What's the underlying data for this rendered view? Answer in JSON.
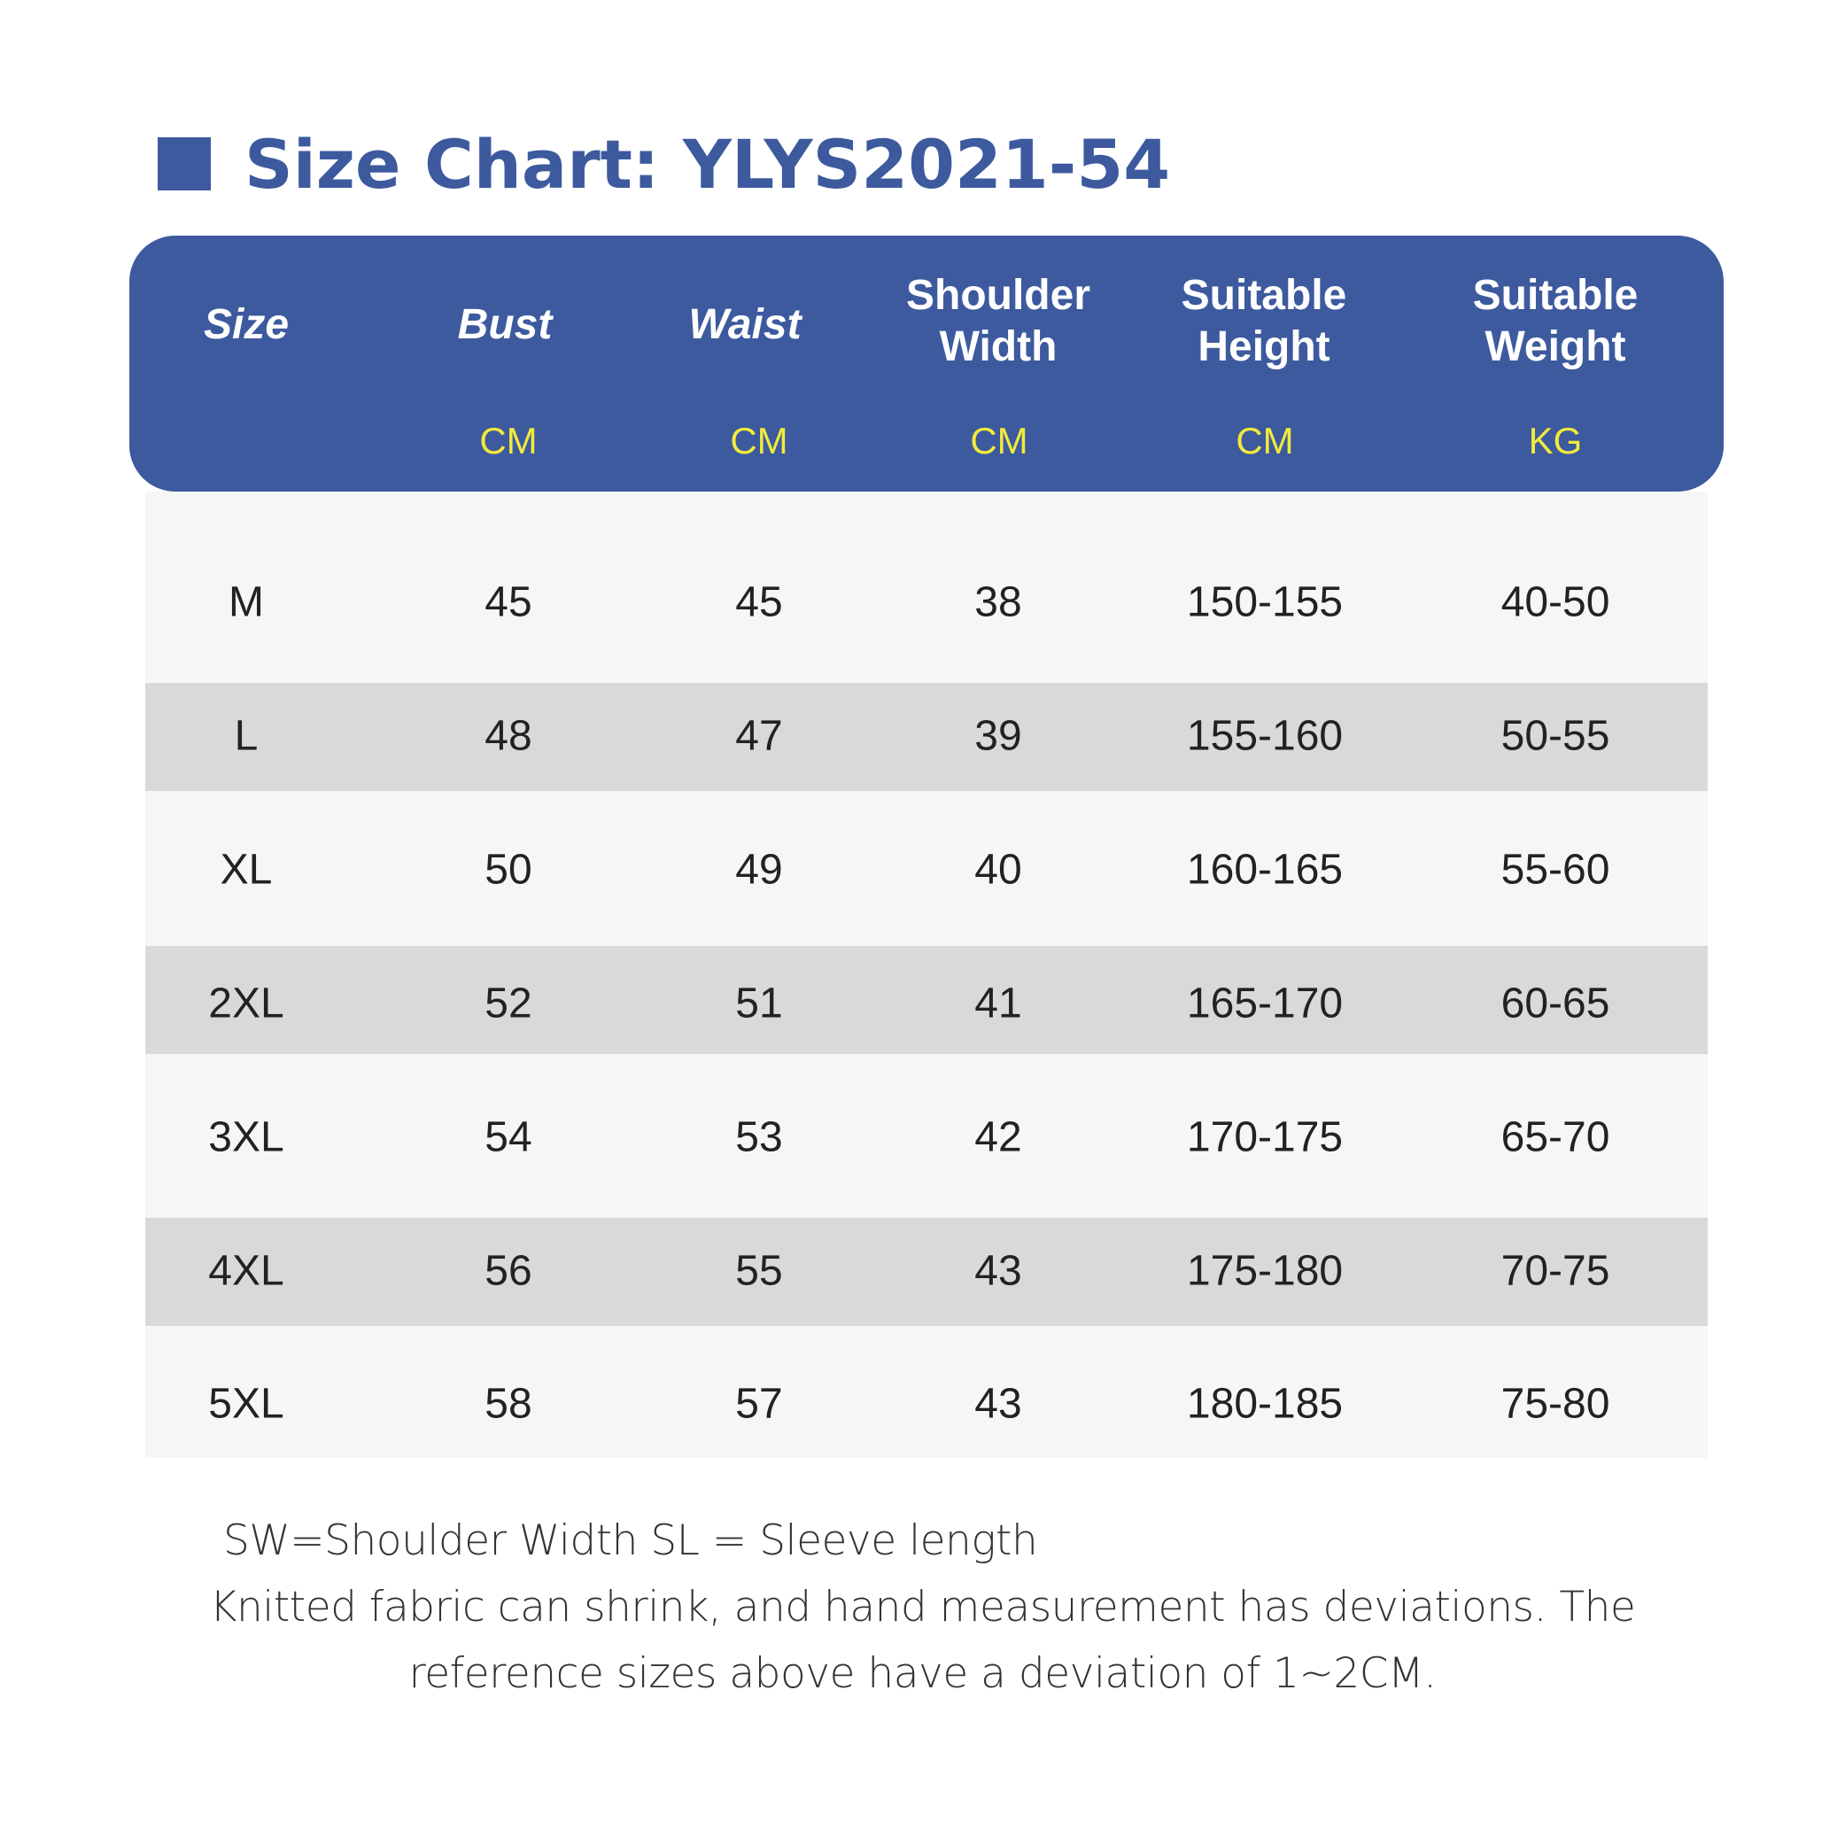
{
  "title": "Size Chart: YLYS2021-54",
  "colors": {
    "accent": "#3d5a9e",
    "unit": "#f1ea3b",
    "row_light": "#f6f6f6",
    "row_dark": "#d9d9d9"
  },
  "columns": [
    {
      "label": "Size",
      "unit": ""
    },
    {
      "label": "Bust",
      "unit": "CM"
    },
    {
      "label": "Waist",
      "unit": "CM"
    },
    {
      "label_line1": "Shoulder",
      "label_line2": "Width",
      "unit": "CM"
    },
    {
      "label_line1": "Suitable",
      "label_line2": "Height",
      "unit": "CM"
    },
    {
      "label_line1": "Suitable",
      "label_line2": "Weight",
      "unit": "KG"
    }
  ],
  "rows": [
    [
      "M",
      "45",
      "45",
      "38",
      "150-155",
      "40-50"
    ],
    [
      "L",
      "48",
      "47",
      "39",
      "155-160",
      "50-55"
    ],
    [
      "XL",
      "50",
      "49",
      "40",
      "160-165",
      "55-60"
    ],
    [
      "2XL",
      "52",
      "51",
      "41",
      "165-170",
      "60-65"
    ],
    [
      "3XL",
      "54",
      "53",
      "42",
      "170-175",
      "65-70"
    ],
    [
      "4XL",
      "56",
      "55",
      "43",
      "175-180",
      "70-75"
    ],
    [
      "5XL",
      "58",
      "57",
      "43",
      "180-185",
      "75-80"
    ]
  ],
  "notes": {
    "line1": "SW=Shoulder Width SL = Sleeve length",
    "line2": "Knitted fabric can shrink, and hand measurement has deviations. The",
    "line3": "reference sizes above have a deviation of 1~2CM."
  }
}
